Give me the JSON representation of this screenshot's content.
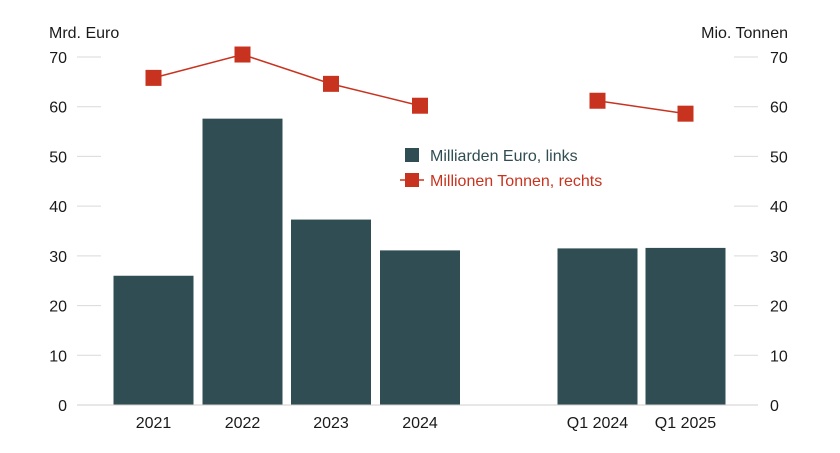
{
  "chart_data": {
    "type": "bar",
    "y_left_label": "Mrd. Euro",
    "y_right_label": "Mio. Tonnen",
    "ylim": [
      0,
      70
    ],
    "yticks": [
      0,
      10,
      20,
      30,
      40,
      50,
      60,
      70
    ],
    "categories": [
      "2021",
      "2022",
      "2023",
      "2024",
      "",
      "Q1 2024",
      "Q1 2025"
    ],
    "series": [
      {
        "name": "Milliarden Euro, links",
        "type": "bar",
        "axis": "left",
        "color": "#2f4d52",
        "values": [
          26,
          57.6,
          37.3,
          31.1,
          null,
          31.5,
          31.6
        ]
      },
      {
        "name": "Millionen Tonnen, rechts",
        "type": "line",
        "axis": "right",
        "color": "#c8331f",
        "values": [
          65.8,
          70.5,
          64.6,
          60.2,
          null,
          61.2,
          58.6
        ]
      }
    ],
    "grid": true,
    "legend_position": "center"
  }
}
